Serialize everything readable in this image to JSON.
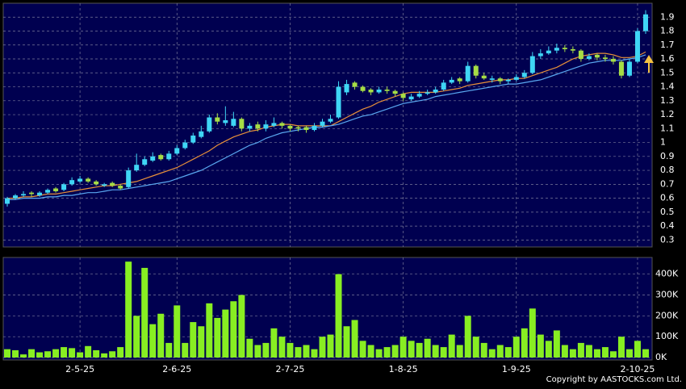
{
  "chart_data": {
    "type": "candlestick",
    "xlim": [
      -0.5,
      79.8
    ],
    "xticks": [
      {
        "value": 9,
        "label": "2-5-25"
      },
      {
        "value": 21,
        "label": "2-6-25"
      },
      {
        "value": 35,
        "label": "2-7-25"
      },
      {
        "value": 49,
        "label": "1-8-25"
      },
      {
        "value": 63,
        "label": "1-9-25"
      },
      {
        "value": 78,
        "label": "2-10-25"
      }
    ],
    "ylim": [
      0.25,
      2.0
    ],
    "yticks": [
      0.3,
      0.4,
      0.5,
      0.6,
      0.7,
      0.8,
      0.9,
      1,
      1.1,
      1.2,
      1.3,
      1.4,
      1.5,
      1.6,
      1.7,
      1.8,
      1.9
    ],
    "grid": true,
    "up_color": "#3fd6f5",
    "down_color": "#a6dd45",
    "open": [
      0.56,
      0.6,
      0.62,
      0.64,
      0.62,
      0.64,
      0.67,
      0.66,
      0.7,
      0.72,
      0.74,
      0.72,
      0.69,
      0.71,
      0.69,
      0.68,
      0.8,
      0.84,
      0.87,
      0.91,
      0.88,
      0.92,
      0.96,
      1.0,
      1.04,
      1.08,
      1.18,
      1.14,
      1.12,
      1.17,
      1.1,
      1.13,
      1.1,
      1.12,
      1.14,
      1.12,
      1.11,
      1.11,
      1.09,
      1.12,
      1.15,
      1.18,
      1.36,
      1.43,
      1.4,
      1.38,
      1.36,
      1.38,
      1.37,
      1.35,
      1.31,
      1.33,
      1.35,
      1.36,
      1.38,
      1.43,
      1.46,
      1.44,
      1.55,
      1.48,
      1.45,
      1.46,
      1.44,
      1.45,
      1.47,
      1.5,
      1.62,
      1.64,
      1.66,
      1.68,
      1.67,
      1.66,
      1.6,
      1.63,
      1.61,
      1.6,
      1.58,
      1.48,
      1.58,
      1.8
    ],
    "high": [
      0.61,
      0.63,
      0.65,
      0.65,
      0.65,
      0.67,
      0.68,
      0.71,
      0.75,
      0.76,
      0.75,
      0.73,
      0.71,
      0.72,
      0.7,
      0.82,
      0.92,
      0.9,
      0.93,
      0.92,
      0.94,
      0.98,
      1.02,
      1.07,
      1.12,
      1.2,
      1.21,
      1.26,
      1.22,
      1.18,
      1.14,
      1.15,
      1.16,
      1.18,
      1.15,
      1.13,
      1.12,
      1.12,
      1.14,
      1.17,
      1.2,
      1.44,
      1.45,
      1.44,
      1.41,
      1.39,
      1.4,
      1.4,
      1.38,
      1.36,
      1.35,
      1.37,
      1.38,
      1.4,
      1.45,
      1.47,
      1.47,
      1.58,
      1.56,
      1.5,
      1.48,
      1.47,
      1.46,
      1.49,
      1.52,
      1.65,
      1.67,
      1.69,
      1.71,
      1.7,
      1.69,
      1.67,
      1.64,
      1.64,
      1.63,
      1.62,
      1.59,
      1.6,
      1.82,
      1.95
    ],
    "low": [
      0.54,
      0.59,
      0.61,
      0.61,
      0.61,
      0.63,
      0.64,
      0.65,
      0.69,
      0.71,
      0.71,
      0.69,
      0.68,
      0.68,
      0.66,
      0.67,
      0.79,
      0.83,
      0.86,
      0.87,
      0.87,
      0.91,
      0.95,
      0.99,
      1.03,
      1.07,
      1.13,
      1.12,
      1.11,
      1.08,
      1.08,
      1.08,
      1.08,
      1.11,
      1.1,
      1.08,
      1.08,
      1.07,
      1.08,
      1.11,
      1.14,
      1.17,
      1.34,
      1.38,
      1.36,
      1.34,
      1.35,
      1.35,
      1.33,
      1.3,
      1.3,
      1.32,
      1.34,
      1.35,
      1.37,
      1.42,
      1.42,
      1.43,
      1.46,
      1.45,
      1.43,
      1.42,
      1.42,
      1.44,
      1.46,
      1.49,
      1.6,
      1.63,
      1.64,
      1.65,
      1.64,
      1.58,
      1.59,
      1.59,
      1.58,
      1.56,
      1.46,
      1.47,
      1.57,
      1.78
    ],
    "close": [
      0.6,
      0.62,
      0.63,
      0.63,
      0.64,
      0.66,
      0.65,
      0.7,
      0.73,
      0.74,
      0.72,
      0.7,
      0.7,
      0.69,
      0.67,
      0.8,
      0.84,
      0.88,
      0.9,
      0.88,
      0.92,
      0.96,
      1.0,
      1.05,
      1.08,
      1.18,
      1.15,
      1.16,
      1.17,
      1.1,
      1.12,
      1.1,
      1.13,
      1.14,
      1.12,
      1.1,
      1.1,
      1.09,
      1.12,
      1.15,
      1.17,
      1.4,
      1.42,
      1.4,
      1.37,
      1.36,
      1.38,
      1.37,
      1.35,
      1.32,
      1.33,
      1.35,
      1.36,
      1.38,
      1.43,
      1.45,
      1.44,
      1.55,
      1.48,
      1.46,
      1.46,
      1.44,
      1.45,
      1.47,
      1.5,
      1.62,
      1.64,
      1.66,
      1.68,
      1.67,
      1.66,
      1.6,
      1.62,
      1.61,
      1.6,
      1.58,
      1.48,
      1.58,
      1.8,
      1.92
    ],
    "lines": [
      {
        "color": "#e8903a",
        "values": [
          0.6,
          0.6,
          0.61,
          0.61,
          0.62,
          0.63,
          0.63,
          0.64,
          0.65,
          0.66,
          0.67,
          0.68,
          0.69,
          0.69,
          0.7,
          0.71,
          0.72,
          0.74,
          0.76,
          0.78,
          0.8,
          0.82,
          0.85,
          0.88,
          0.91,
          0.94,
          0.98,
          1.01,
          1.04,
          1.06,
          1.08,
          1.09,
          1.11,
          1.12,
          1.13,
          1.13,
          1.12,
          1.12,
          1.12,
          1.12,
          1.12,
          1.15,
          1.18,
          1.21,
          1.24,
          1.26,
          1.29,
          1.31,
          1.33,
          1.35,
          1.36,
          1.36,
          1.36,
          1.36,
          1.37,
          1.38,
          1.39,
          1.41,
          1.42,
          1.43,
          1.44,
          1.45,
          1.45,
          1.46,
          1.46,
          1.48,
          1.5,
          1.52,
          1.54,
          1.57,
          1.6,
          1.62,
          1.63,
          1.64,
          1.64,
          1.63,
          1.61,
          1.61,
          1.62,
          1.65
        ]
      },
      {
        "color": "#5aa8f0",
        "values": [
          0.59,
          0.59,
          0.6,
          0.6,
          0.6,
          0.61,
          0.61,
          0.62,
          0.62,
          0.63,
          0.64,
          0.64,
          0.65,
          0.66,
          0.66,
          0.67,
          0.68,
          0.69,
          0.7,
          0.71,
          0.72,
          0.74,
          0.76,
          0.78,
          0.8,
          0.83,
          0.86,
          0.89,
          0.92,
          0.95,
          0.98,
          1.0,
          1.03,
          1.05,
          1.07,
          1.08,
          1.09,
          1.1,
          1.11,
          1.11,
          1.12,
          1.13,
          1.15,
          1.17,
          1.19,
          1.2,
          1.22,
          1.24,
          1.26,
          1.28,
          1.29,
          1.3,
          1.31,
          1.33,
          1.34,
          1.35,
          1.36,
          1.37,
          1.38,
          1.39,
          1.4,
          1.41,
          1.42,
          1.42,
          1.43,
          1.44,
          1.45,
          1.47,
          1.49,
          1.51,
          1.53,
          1.55,
          1.57,
          1.58,
          1.59,
          1.59,
          1.59,
          1.6,
          1.61,
          1.63
        ]
      }
    ],
    "volume": {
      "color": "#88ee22",
      "ylim": [
        0,
        480000
      ],
      "yticks": [
        {
          "value": 0,
          "label": "0K"
        },
        {
          "value": 100000,
          "label": "100K"
        },
        {
          "value": 200000,
          "label": "200K"
        },
        {
          "value": 300000,
          "label": "300K"
        },
        {
          "value": 400000,
          "label": "400K"
        }
      ],
      "values": [
        40000,
        35000,
        15000,
        40000,
        25000,
        30000,
        40000,
        50000,
        45000,
        25000,
        55000,
        35000,
        20000,
        30000,
        50000,
        460000,
        200000,
        430000,
        160000,
        210000,
        70000,
        250000,
        70000,
        170000,
        150000,
        260000,
        190000,
        230000,
        270000,
        300000,
        90000,
        60000,
        70000,
        140000,
        100000,
        70000,
        50000,
        60000,
        40000,
        100000,
        110000,
        400000,
        150000,
        180000,
        80000,
        60000,
        40000,
        50000,
        60000,
        100000,
        80000,
        70000,
        90000,
        60000,
        50000,
        110000,
        60000,
        200000,
        100000,
        70000,
        40000,
        60000,
        50000,
        100000,
        140000,
        235000,
        110000,
        80000,
        130000,
        60000,
        40000,
        70000,
        60000,
        40000,
        50000,
        30000,
        100000,
        40000,
        80000,
        40000
      ]
    },
    "copyright": "Copyright by AASTOCKS.com Ltd."
  }
}
